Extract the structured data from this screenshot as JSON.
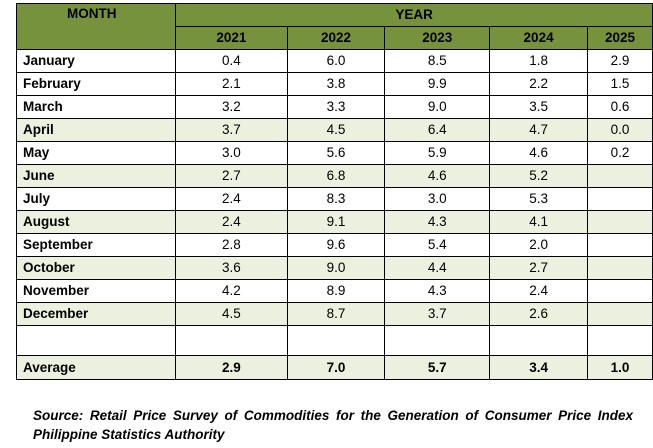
{
  "table": {
    "month_header": "MONTH",
    "year_header": "YEAR",
    "years": [
      "2021",
      "2022",
      "2023",
      "2024",
      "2025"
    ],
    "rows": [
      {
        "month": "January",
        "values": [
          "0.4",
          "6.0",
          "8.5",
          "1.8",
          "2.9"
        ]
      },
      {
        "month": "February",
        "values": [
          "2.1",
          "3.8",
          "9.9",
          "2.2",
          "1.5"
        ]
      },
      {
        "month": "March",
        "values": [
          "3.2",
          "3.3",
          "9.0",
          "3.5",
          "0.6"
        ]
      },
      {
        "month": "April",
        "values": [
          "3.7",
          "4.5",
          "6.4",
          "4.7",
          "0.0"
        ]
      },
      {
        "month": "May",
        "values": [
          "3.0",
          "5.6",
          "5.9",
          "4.6",
          "0.2"
        ]
      },
      {
        "month": "June",
        "values": [
          "2.7",
          "6.8",
          "4.6",
          "5.2",
          ""
        ]
      },
      {
        "month": "July",
        "values": [
          "2.4",
          "8.3",
          "3.0",
          "5.3",
          ""
        ]
      },
      {
        "month": "August",
        "values": [
          "2.4",
          "9.1",
          "4.3",
          "4.1",
          ""
        ]
      },
      {
        "month": "September",
        "values": [
          "2.8",
          "9.6",
          "5.4",
          "2.0",
          ""
        ]
      },
      {
        "month": "October",
        "values": [
          "3.6",
          "9.0",
          "4.4",
          "2.7",
          ""
        ]
      },
      {
        "month": "November",
        "values": [
          "4.2",
          "8.9",
          "4.3",
          "2.4",
          ""
        ]
      },
      {
        "month": "December",
        "values": [
          "4.5",
          "8.7",
          "3.7",
          "2.6",
          ""
        ]
      }
    ],
    "average": {
      "label": "Average",
      "values": [
        "2.9",
        "7.0",
        "5.7",
        "3.4",
        "1.0"
      ]
    }
  },
  "source": "Source: Retail Price Survey of Commodities for the Generation of Consumer Price Index Philippine Statistics Authority",
  "colors": {
    "header_green": "#77923c",
    "light_row": "#ebf1de"
  }
}
